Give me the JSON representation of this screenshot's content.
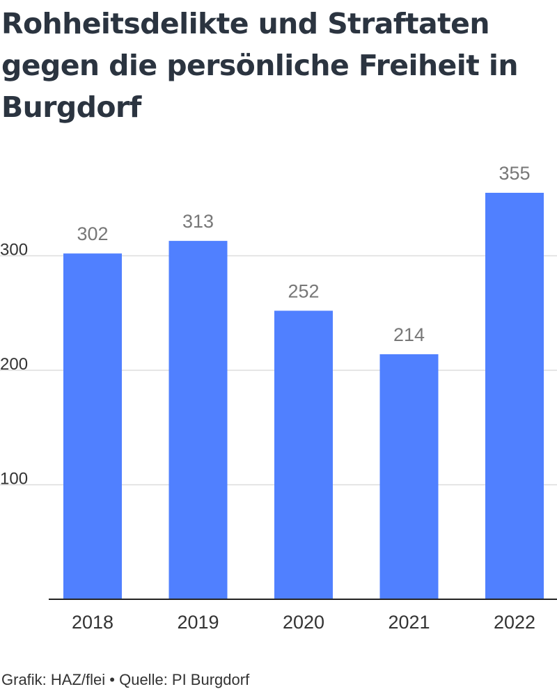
{
  "title": "Rohheitsdelikte und Straftaten gegen die persönliche Freiheit in Burgdorf",
  "footer": {
    "credit": "Grafik: HAZ/flei",
    "separator": "•",
    "source": "Quelle: PI Burgdorf"
  },
  "colors": {
    "bar": "#5080ff",
    "title": "#2b3440",
    "grid": "#dddddd",
    "axis": "#222222",
    "value_label": "#777777",
    "tick_label": "#333333"
  },
  "chart_data": {
    "type": "bar",
    "categories": [
      "2018",
      "2019",
      "2020",
      "2021",
      "2022"
    ],
    "values": [
      302,
      313,
      252,
      214,
      355
    ],
    "title": "Rohheitsdelikte und Straftaten gegen die persönliche Freiheit in Burgdorf",
    "xlabel": "",
    "ylabel": "",
    "ylim": [
      0,
      355
    ],
    "yticks": [
      100,
      200,
      300
    ],
    "grid": true,
    "legend": "none",
    "data_labels": true
  }
}
